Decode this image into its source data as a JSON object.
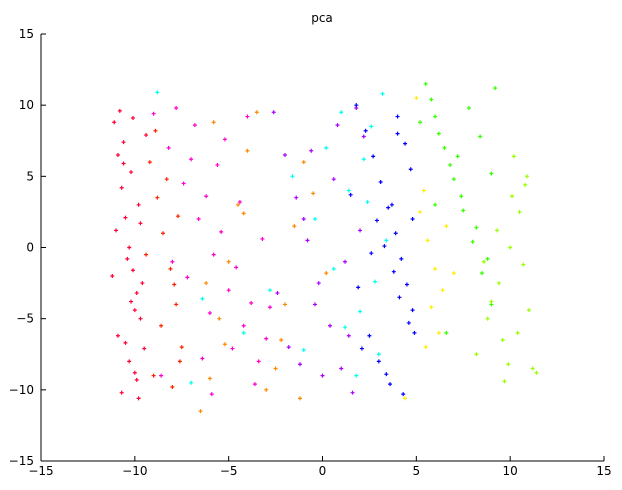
{
  "chart_data": {
    "type": "scatter",
    "title": "pca",
    "xlabel": "",
    "ylabel": "",
    "xlim": [
      -15,
      15
    ],
    "ylim": [
      -15,
      15
    ],
    "xticks": [
      -15,
      -10,
      -5,
      0,
      5,
      10,
      15
    ],
    "yticks": [
      -15,
      -10,
      -5,
      0,
      5,
      10,
      15
    ],
    "xtick_labels": [
      "−15",
      "−10",
      "−5",
      "0",
      "5",
      "10",
      "15"
    ],
    "ytick_labels": [
      "−15",
      "−10",
      "−5",
      "0",
      "5",
      "10",
      "15"
    ],
    "grid": false,
    "marker": "+",
    "series": [
      {
        "color": "#ff0033",
        "x": [
          -11.1,
          -10.9,
          -10.7,
          -10.5,
          -10.3,
          -10.1,
          -9.9,
          -9.7,
          -9.5,
          -10.8,
          -10.6,
          -10.2,
          -9.8,
          -11.0,
          -10.4,
          -9.6,
          -10.0,
          -10.9,
          -10.3,
          -9.9,
          -10.7,
          -10.1,
          -9.4,
          -11.2,
          -10.5,
          -9.8,
          -10.2,
          -10.6,
          -9.7,
          -10.0
        ],
        "y": [
          8.8,
          6.5,
          4.2,
          2.1,
          0.0,
          -1.6,
          -3.2,
          -5.0,
          -7.1,
          9.6,
          7.4,
          5.3,
          3.0,
          1.2,
          -0.8,
          -2.5,
          -4.4,
          -6.2,
          -8.0,
          -9.3,
          -10.2,
          9.1,
          7.9,
          -2.0,
          -6.7,
          -10.6,
          -3.8,
          5.9,
          1.7,
          -8.8
        ]
      },
      {
        "color": "#ff2200",
        "x": [
          -9.2,
          -8.8,
          -8.5,
          -8.1,
          -7.8,
          -7.5,
          -9.0,
          -8.3,
          -7.9,
          -8.6,
          -7.7,
          -9.4,
          -8.0,
          -8.9,
          -7.6
        ],
        "y": [
          6.0,
          3.5,
          1.0,
          -1.5,
          -4.0,
          -7.0,
          -9.0,
          4.8,
          -2.6,
          -5.5,
          2.2,
          -0.5,
          -9.8,
          8.2,
          -8.0
        ]
      },
      {
        "color": "#ff00cc",
        "x": [
          -9.0,
          -8.2,
          -7.4,
          -6.6,
          -5.8,
          -5.0,
          -4.2,
          -3.4,
          -7.8,
          -7.0,
          -6.2,
          -5.4,
          -4.6,
          -3.8,
          -3.0,
          -8.6,
          -6.8,
          -5.6,
          -4.4,
          -3.2,
          -7.2,
          -6.0,
          -4.8,
          -3.6,
          -8.0,
          -6.4,
          -5.2,
          -4.0,
          -2.8,
          -5.9
        ],
        "y": [
          9.4,
          7.0,
          4.5,
          2.0,
          -0.5,
          -3.0,
          -5.5,
          -8.0,
          9.8,
          6.2,
          3.6,
          1.1,
          -1.4,
          -3.9,
          -6.4,
          -9.0,
          8.6,
          5.8,
          3.2,
          0.6,
          -2.1,
          -4.6,
          -7.1,
          -9.6,
          -1.0,
          -7.8,
          7.6,
          9.2,
          -4.2,
          -10.3
        ]
      },
      {
        "color": "#ff8800",
        "x": [
          -6.5,
          -6.0,
          -5.5,
          -5.0,
          -4.5,
          -4.0,
          -3.5,
          -2.5,
          -2.0,
          -1.5,
          -1.0,
          -6.2,
          -5.2,
          -4.2,
          -3.0,
          -2.2,
          -1.2,
          -5.8,
          -0.5,
          0.2
        ],
        "y": [
          -11.5,
          -9.2,
          -5.0,
          -1.0,
          3.0,
          6.8,
          9.5,
          -8.5,
          -4.0,
          1.5,
          6.0,
          -2.5,
          -6.8,
          2.4,
          -10.0,
          -6.5,
          -10.6,
          8.8,
          3.8,
          -1.8
        ]
      },
      {
        "color": "#aa00ff",
        "x": [
          -2.6,
          -2.0,
          -1.4,
          -0.8,
          -0.2,
          0.4,
          1.0,
          1.6,
          2.2,
          -1.8,
          -1.0,
          -0.4,
          0.6,
          1.2,
          1.8,
          -2.4,
          0.0,
          0.8,
          1.4,
          2.0,
          -1.2,
          -0.6
        ],
        "y": [
          9.5,
          6.5,
          3.5,
          0.5,
          -2.5,
          -5.5,
          -8.5,
          -10.2,
          7.8,
          -7.0,
          2.0,
          -4.0,
          4.8,
          -1.0,
          9.8,
          -3.2,
          -9.0,
          8.6,
          -6.2,
          1.2,
          -8.2,
          6.8
        ]
      },
      {
        "color": "#00ffee",
        "x": [
          -7.0,
          -4.2,
          -2.8,
          -1.6,
          -0.4,
          0.6,
          1.4,
          2.0,
          2.6,
          3.0,
          3.4,
          1.0,
          1.8,
          2.4,
          2.8,
          0.2,
          1.2,
          2.2,
          -1.0,
          3.2,
          -8.8,
          -6.4
        ],
        "y": [
          -9.5,
          -6.0,
          -3.0,
          5.0,
          2.0,
          -1.5,
          4.0,
          -4.5,
          8.5,
          -7.5,
          0.5,
          9.5,
          -9.0,
          3.2,
          -2.4,
          7.0,
          -5.6,
          6.2,
          -7.2,
          10.8,
          10.9,
          -3.6
        ]
      },
      {
        "color": "#0000ff",
        "x": [
          1.8,
          2.3,
          2.7,
          3.1,
          3.5,
          3.9,
          4.2,
          4.5,
          4.8,
          2.5,
          3.0,
          3.6,
          4.0,
          4.4,
          4.7,
          1.5,
          2.9,
          3.3,
          3.8,
          4.1,
          4.6,
          2.1,
          3.4,
          4.3,
          4.9,
          3.7,
          2.6,
          4.0,
          4.8,
          1.9
        ],
        "y": [
          10.0,
          8.2,
          6.4,
          4.6,
          2.8,
          1.0,
          -0.8,
          -2.6,
          -4.4,
          -6.2,
          -8.0,
          -9.6,
          9.2,
          7.3,
          5.5,
          3.7,
          1.9,
          0.1,
          -1.7,
          -3.5,
          -5.3,
          -7.1,
          -8.9,
          -10.3,
          -6.0,
          3.0,
          -0.4,
          8.0,
          2.0,
          -2.8
        ]
      },
      {
        "color": "#ffee00",
        "x": [
          5.2,
          5.6,
          6.0,
          6.4,
          5.4,
          5.8,
          6.2,
          5.0,
          6.6,
          5.5,
          7.0,
          4.4
        ],
        "y": [
          2.5,
          0.5,
          -1.5,
          -3.0,
          4.0,
          -4.2,
          -6.0,
          10.5,
          1.5,
          -7.0,
          -1.8,
          -10.6
        ]
      },
      {
        "color": "#33ff00",
        "x": [
          5.5,
          6.0,
          6.5,
          7.0,
          7.5,
          8.0,
          8.5,
          9.0,
          6.2,
          6.8,
          7.4,
          8.2,
          8.8,
          5.8,
          7.2,
          7.8,
          9.2,
          6.0,
          8.4,
          9.0,
          5.2,
          6.6
        ],
        "y": [
          11.5,
          9.2,
          7.0,
          4.8,
          2.6,
          0.4,
          -1.8,
          -4.0,
          8.0,
          5.8,
          3.6,
          1.4,
          -0.8,
          10.4,
          6.4,
          9.8,
          11.2,
          3.0,
          7.8,
          5.2,
          8.8,
          -6.0
        ]
      },
      {
        "color": "#99ff00",
        "x": [
          8.2,
          8.8,
          9.4,
          10.0,
          10.5,
          10.9,
          11.2,
          9.0,
          9.6,
          10.2,
          10.7,
          11.0,
          9.3,
          9.9,
          10.4,
          8.6,
          11.4,
          10.1,
          9.7,
          10.8
        ],
        "y": [
          -7.5,
          -5.0,
          -2.5,
          0.0,
          2.5,
          5.0,
          -8.5,
          -3.8,
          -6.5,
          6.4,
          -1.2,
          -4.4,
          1.2,
          -8.2,
          -6.0,
          -1.0,
          -8.8,
          3.6,
          -9.4,
          4.4
        ]
      }
    ]
  }
}
